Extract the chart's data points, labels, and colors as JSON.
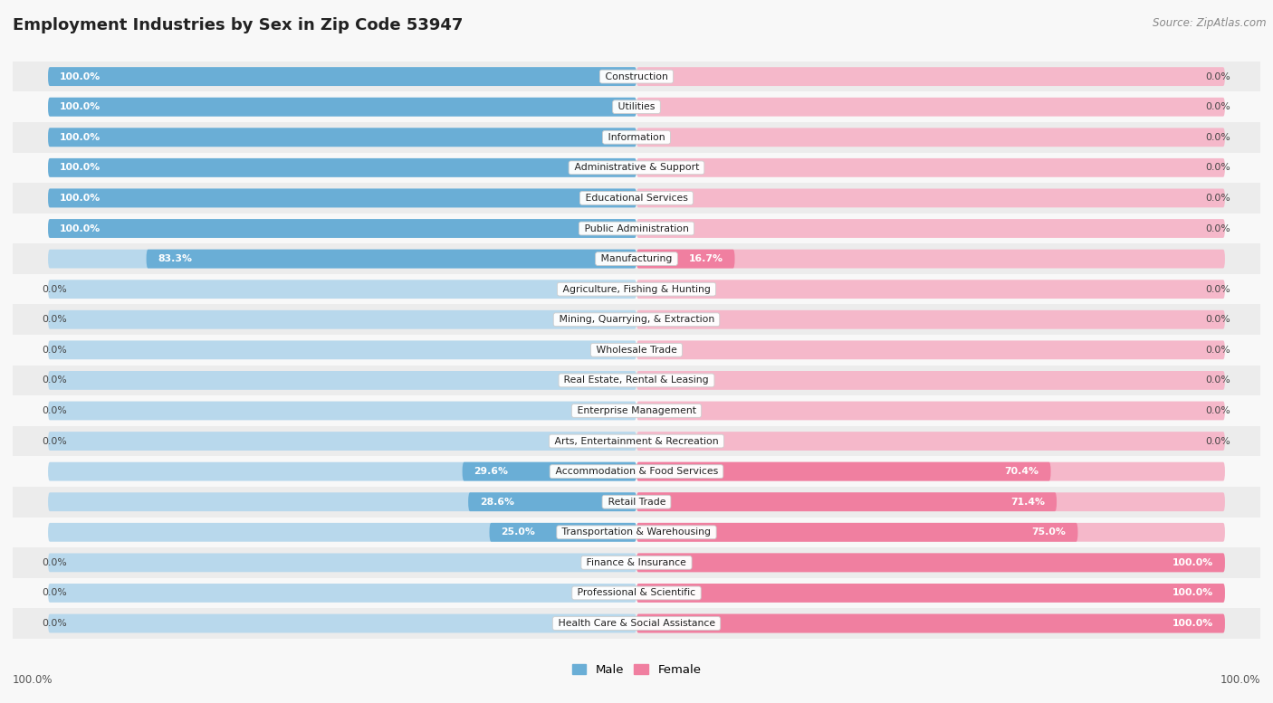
{
  "title": "Employment Industries by Sex in Zip Code 53947",
  "source": "Source: ZipAtlas.com",
  "male_color": "#6aaed6",
  "female_color": "#f07fa0",
  "male_light": "#b8d8ec",
  "female_light": "#f5b8ca",
  "row_bg_odd": "#ececec",
  "row_bg_even": "#f8f8f8",
  "fig_bg": "#f8f8f8",
  "categories": [
    "Construction",
    "Utilities",
    "Information",
    "Administrative & Support",
    "Educational Services",
    "Public Administration",
    "Manufacturing",
    "Agriculture, Fishing & Hunting",
    "Mining, Quarrying, & Extraction",
    "Wholesale Trade",
    "Real Estate, Rental & Leasing",
    "Enterprise Management",
    "Arts, Entertainment & Recreation",
    "Accommodation & Food Services",
    "Retail Trade",
    "Transportation & Warehousing",
    "Finance & Insurance",
    "Professional & Scientific",
    "Health Care & Social Assistance"
  ],
  "male_pct": [
    100.0,
    100.0,
    100.0,
    100.0,
    100.0,
    100.0,
    83.3,
    0.0,
    0.0,
    0.0,
    0.0,
    0.0,
    0.0,
    29.6,
    28.6,
    25.0,
    0.0,
    0.0,
    0.0
  ],
  "female_pct": [
    0.0,
    0.0,
    0.0,
    0.0,
    0.0,
    0.0,
    16.7,
    0.0,
    0.0,
    0.0,
    0.0,
    0.0,
    0.0,
    70.4,
    71.4,
    75.0,
    100.0,
    100.0,
    100.0
  ]
}
